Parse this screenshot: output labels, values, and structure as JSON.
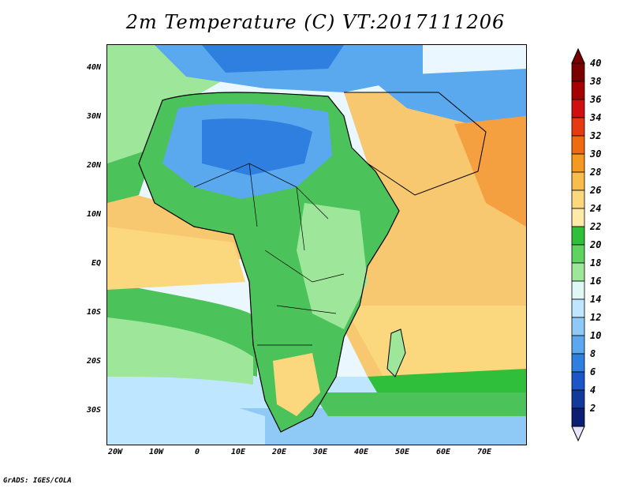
{
  "title": "2m Temperature (C) VT:2017111206",
  "footer": "GrADS: IGES/COLA",
  "lat_labels": [
    "40N",
    "30N",
    "20N",
    "10N",
    "EQ",
    "10S",
    "20S",
    "30S"
  ],
  "lon_labels": [
    "20W",
    "10W",
    "0",
    "10E",
    "20E",
    "30E",
    "40E",
    "50E",
    "60E",
    "70E"
  ],
  "colorbar": {
    "labels": [
      "40",
      "38",
      "36",
      "34",
      "32",
      "30",
      "28",
      "26",
      "24",
      "22",
      "20",
      "18",
      "16",
      "14",
      "12",
      "10",
      "8",
      "6",
      "4",
      "2"
    ],
    "colors": [
      "#7a0000",
      "#a50000",
      "#d01010",
      "#e83a10",
      "#f06a10",
      "#f59a20",
      "#f8bd4a",
      "#fbd77e",
      "#fdeaa8",
      "#2fbf3a",
      "#5fd35f",
      "#9ee69a",
      "#dff7f5",
      "#bfe6ff",
      "#8fcaf7",
      "#5aa8ee",
      "#2f7fe0",
      "#1a56c8",
      "#123a9c",
      "#0b1e72"
    ]
  }
}
